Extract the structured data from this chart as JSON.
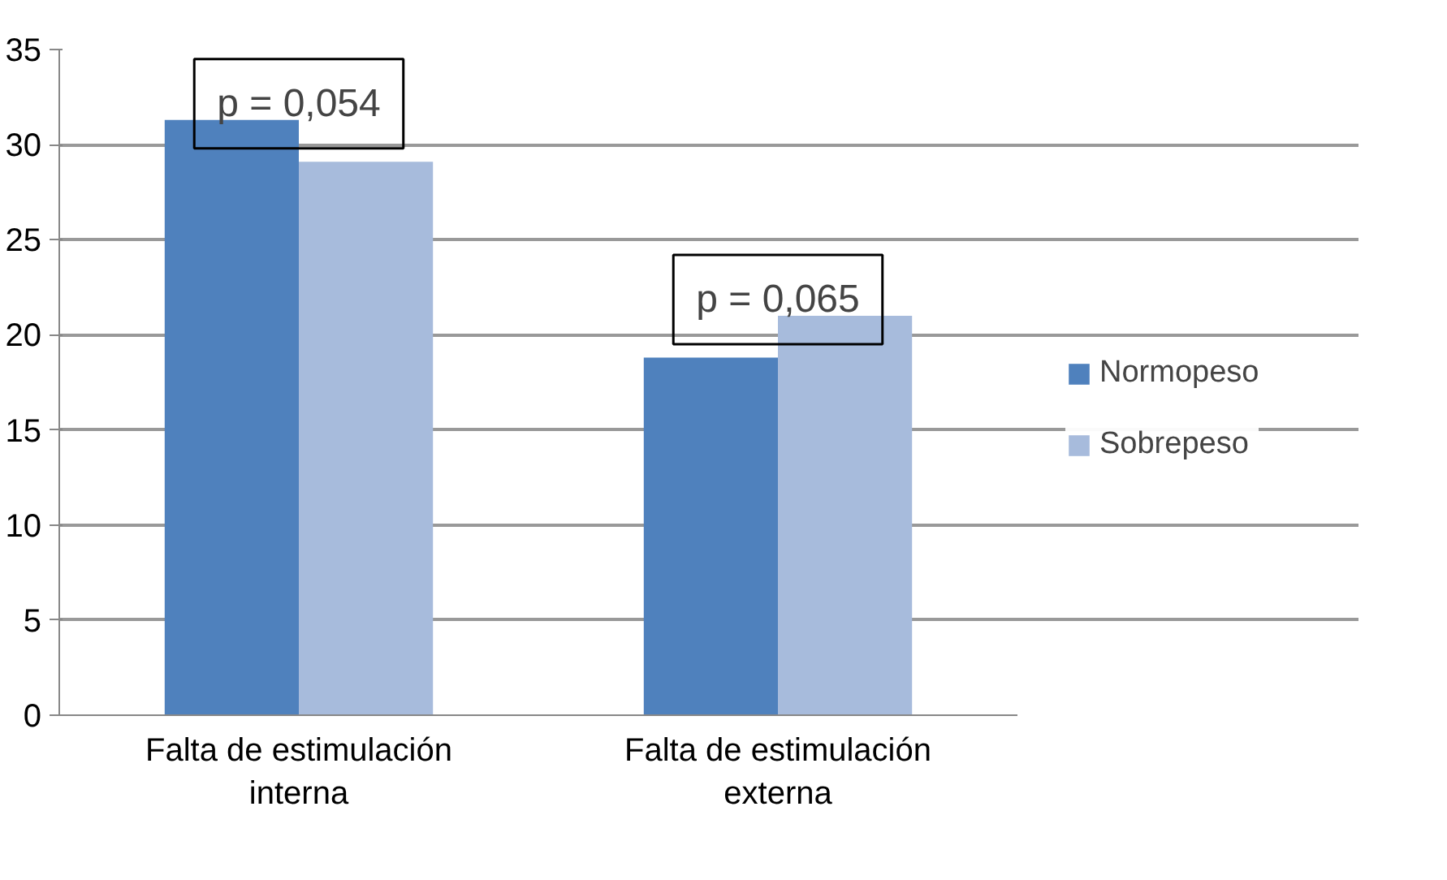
{
  "chart_data": {
    "type": "bar",
    "categories": [
      "Falta de estimulación interna",
      "Falta de estimulación externa"
    ],
    "series": [
      {
        "name": "Normopeso",
        "color": "#4f81bd",
        "values": [
          31.3,
          18.8
        ]
      },
      {
        "name": "Sobrepeso",
        "color": "#a7bbdc",
        "values": [
          29.1,
          21.0
        ]
      }
    ],
    "ylim": [
      0,
      35
    ],
    "yticks": [
      0,
      5,
      10,
      15,
      20,
      25,
      30,
      35
    ],
    "grid": "y",
    "legend": "right",
    "annotations": [
      "p = 0,054",
      "p = 0,065"
    ]
  }
}
